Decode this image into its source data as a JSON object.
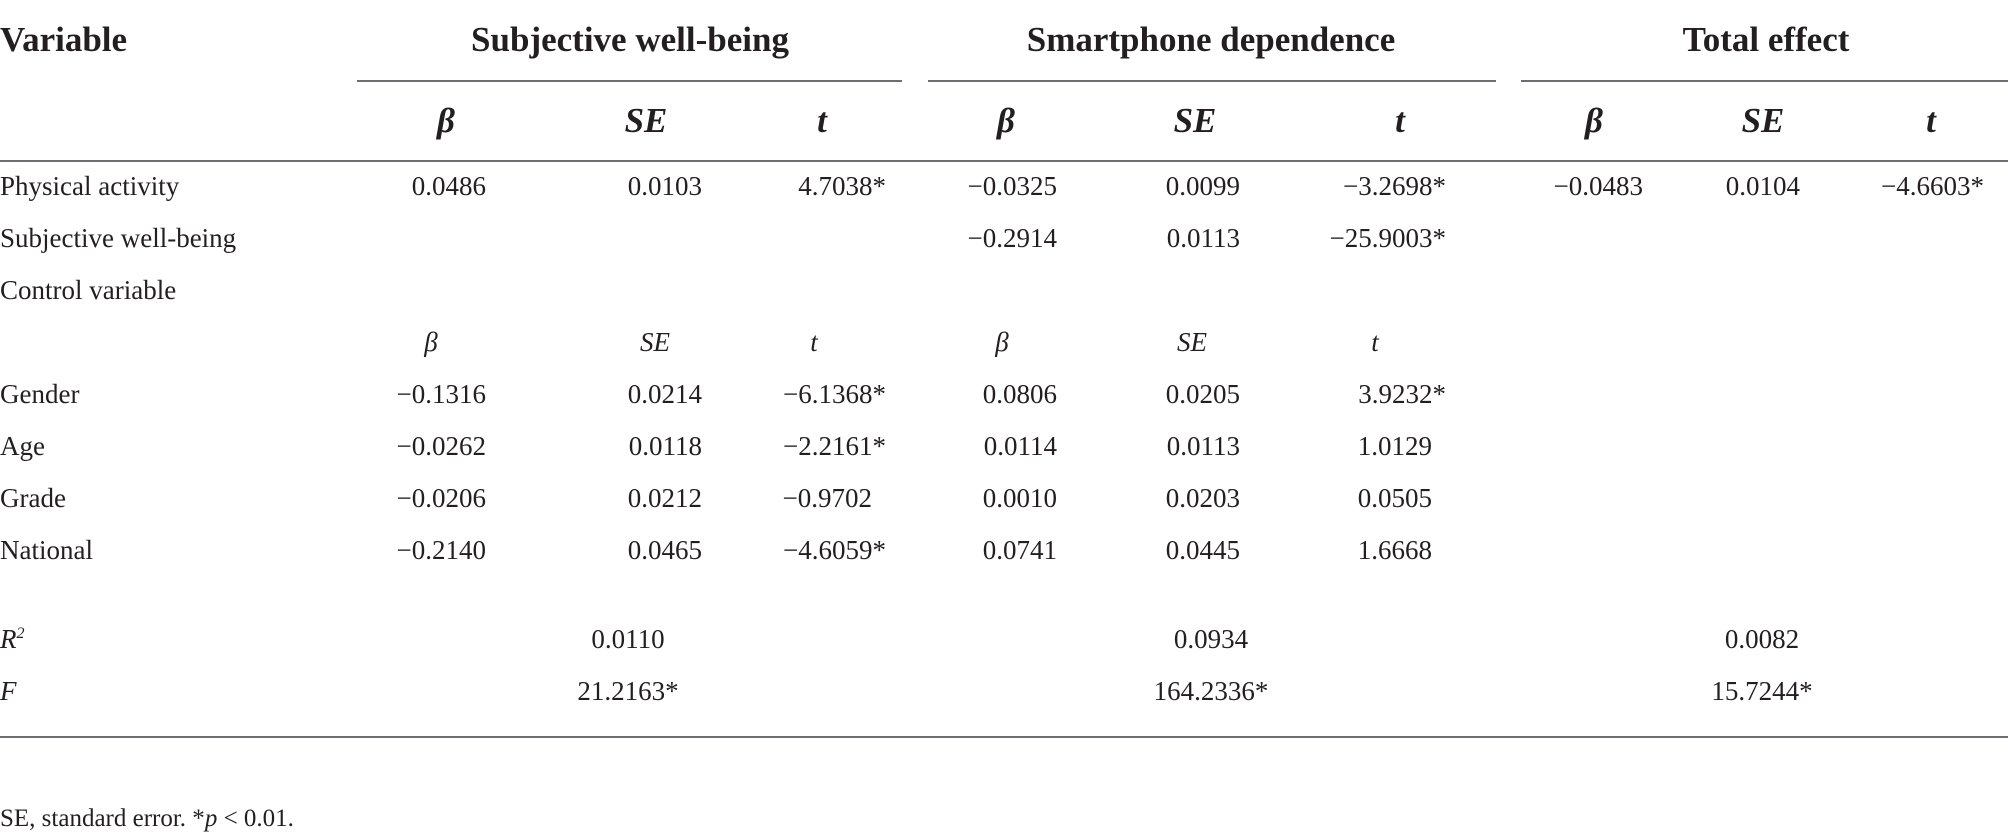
{
  "header": {
    "variable": "Variable",
    "groups": [
      "Subjective well-being",
      "Smartphone dependence",
      "Total effect"
    ],
    "beta": "β",
    "se": "SE",
    "t": "t"
  },
  "rows": {
    "physical_activity": {
      "label": "Physical activity",
      "values": [
        "0.0486",
        "0.0103",
        "4.7038*",
        "−0.0325",
        "0.0099",
        "−3.2698*",
        "−0.0483",
        "0.0104",
        "−4.6603*"
      ]
    },
    "subjective_wellbeing": {
      "label": "Subjective well-being",
      "values": [
        "−0.2914",
        "0.0113",
        "−25.9003*"
      ]
    },
    "control_variable": {
      "label": "Control variable"
    },
    "subheader": [
      "β",
      "SE",
      "t",
      "β",
      "SE",
      "t"
    ],
    "gender": {
      "label": "Gender",
      "values": [
        "−0.1316",
        "0.0214",
        "−6.1368*",
        "0.0806",
        "0.0205",
        "3.9232*"
      ]
    },
    "age": {
      "label": "Age",
      "values": [
        "−0.0262",
        "0.0118",
        "−2.2161*",
        "0.0114",
        "0.0113",
        "1.0129"
      ]
    },
    "grade": {
      "label": "Grade",
      "values": [
        "−0.0206",
        "0.0212",
        "−0.9702",
        "0.0010",
        "0.0203",
        "0.0505"
      ]
    },
    "national": {
      "label": "National",
      "values": [
        "−0.2140",
        "0.0465",
        "−4.6059*",
        "0.0741",
        "0.0445",
        "1.6668"
      ]
    },
    "r2": {
      "label": "R",
      "label_sup": "2",
      "values": [
        "0.0110",
        "0.0934",
        "0.0082"
      ]
    },
    "f": {
      "label": "F",
      "values": [
        "21.2163*",
        "164.2336*",
        "15.7244*"
      ]
    }
  },
  "footnote": {
    "prefix": "SE, standard error. *",
    "p": "p",
    "suffix": " < 0.01."
  }
}
